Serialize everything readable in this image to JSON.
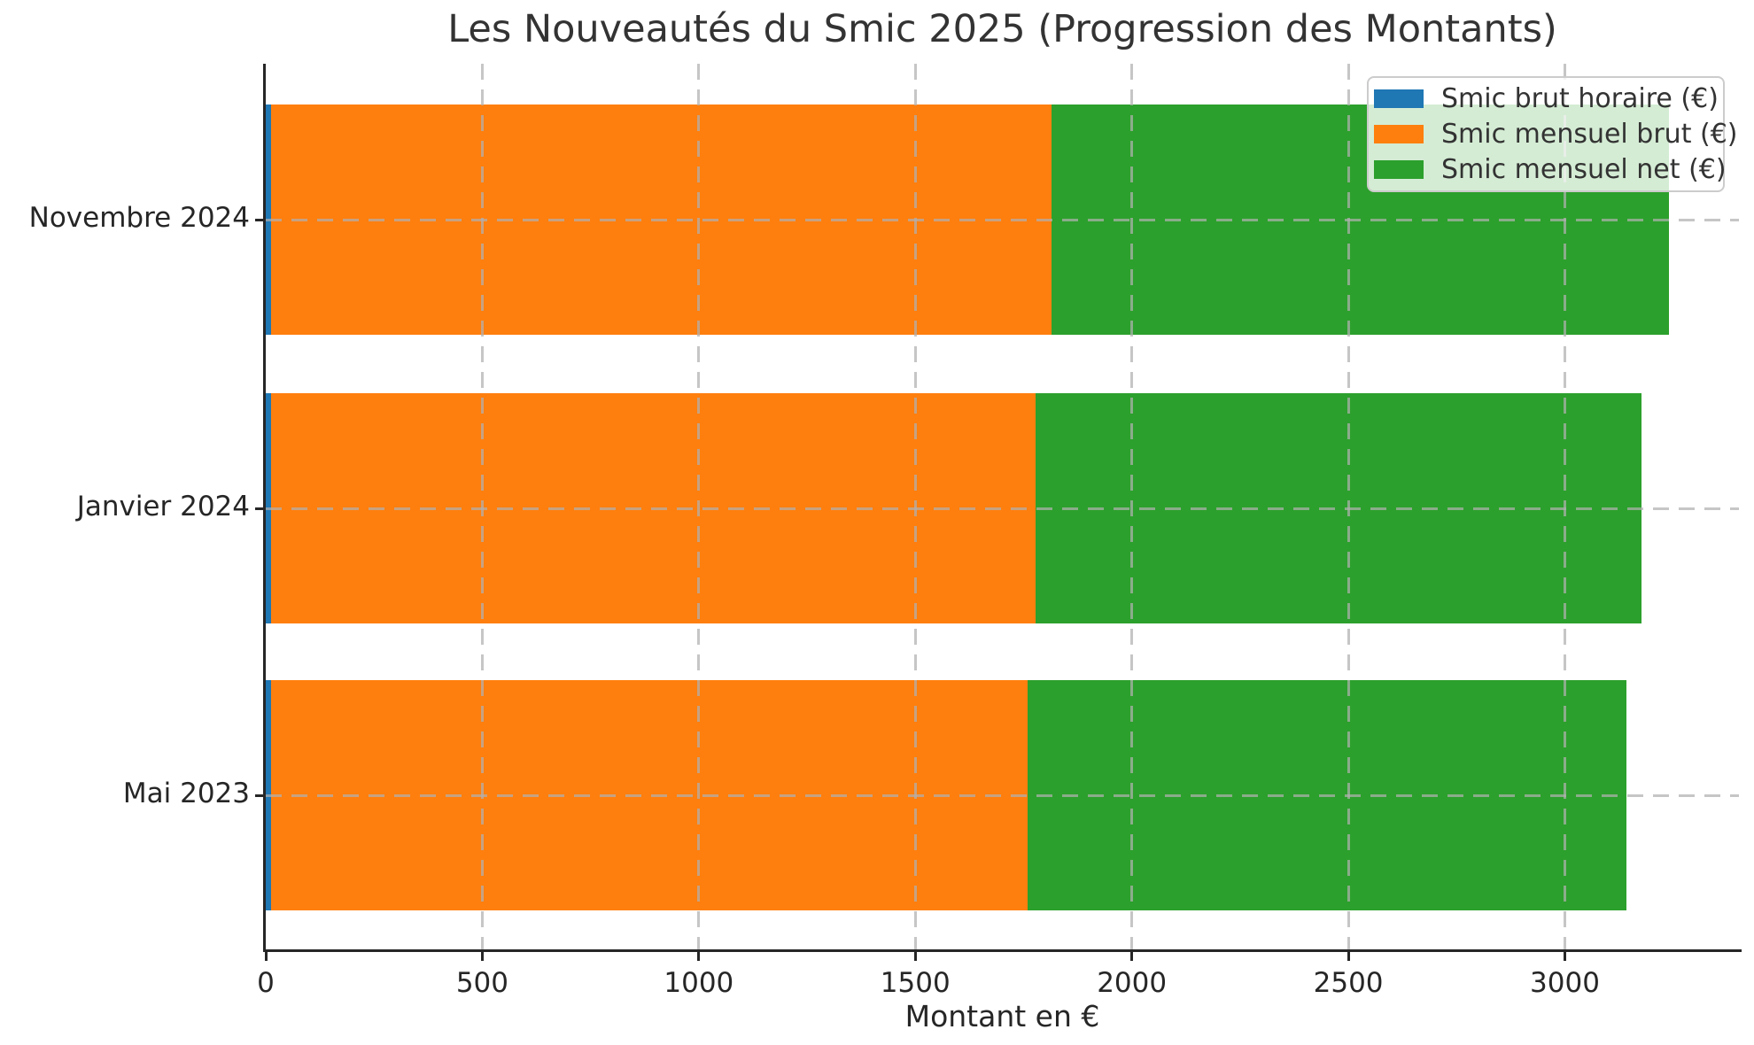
{
  "chart_data": {
    "type": "bar",
    "orientation": "horizontal-stacked",
    "title": "Les Nouveautés du Smic 2025 (Progression des Montants)",
    "xlabel": "Montant en €",
    "ylabel": "",
    "categories": [
      "Novembre 2024",
      "Janvier 2024",
      "Mai 2023"
    ],
    "series": [
      {
        "name": "Smic brut horaire (€)",
        "color": "#1f77b4",
        "values": [
          11.88,
          11.65,
          11.52
        ]
      },
      {
        "name": "Smic mensuel brut (€)",
        "color": "#ff7f0e",
        "values": [
          1801.8,
          1766.92,
          1747.2
        ]
      },
      {
        "name": "Smic mensuel net (€)",
        "color": "#2ca02c",
        "values": [
          1426.3,
          1398.69,
          1383.08
        ]
      }
    ],
    "totals": [
      3239.98,
      3177.26,
      3141.8
    ],
    "xlim": [
      0,
      3402
    ],
    "xticks": [
      0,
      500,
      1000,
      1500,
      2000,
      2500,
      3000
    ],
    "grid": {
      "visible": true,
      "style": "dashed",
      "axes": "both",
      "above_bars": true
    },
    "legend": {
      "position": "upper right",
      "entries": [
        "Smic brut horaire (€)",
        "Smic mensuel brut (€)",
        "Smic mensuel net (€)"
      ]
    },
    "background": "#ffffff",
    "spine_color": "#262626"
  }
}
